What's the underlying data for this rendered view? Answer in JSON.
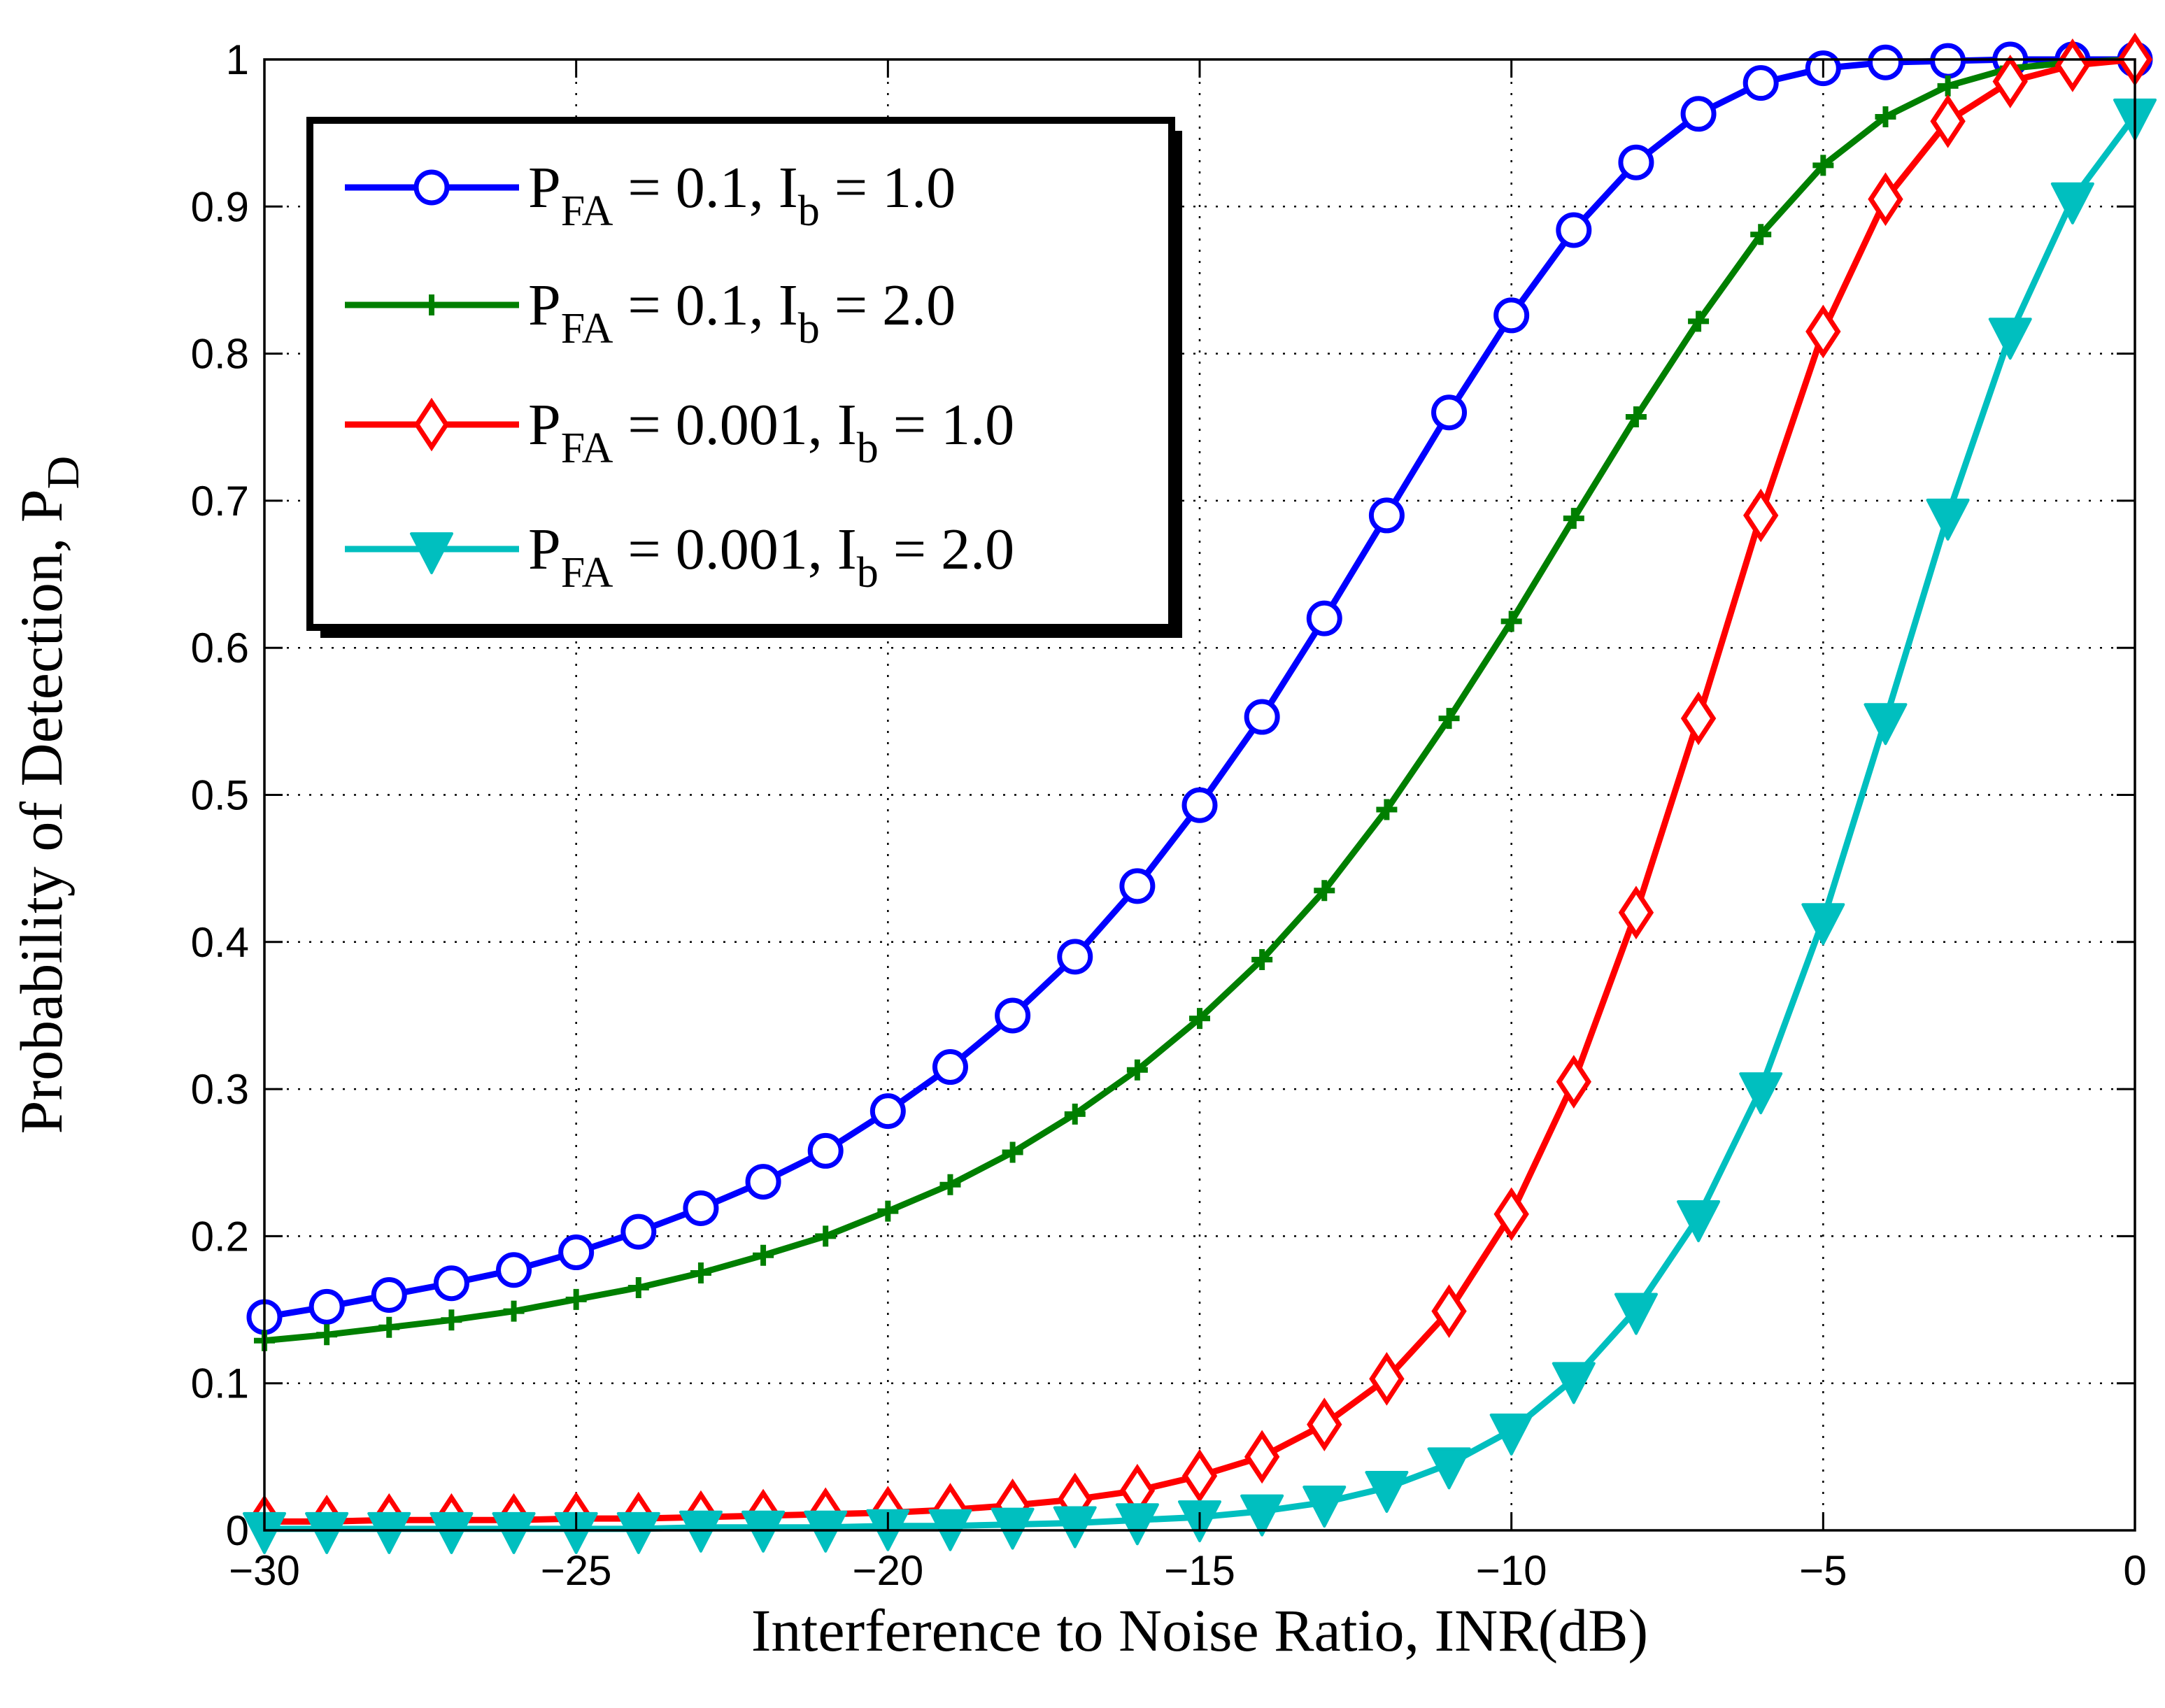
{
  "chart_data": {
    "type": "line",
    "title": "",
    "xlabel": "Interference to Noise Ratio, INR(dB)",
    "ylabel": {
      "main": "Probability of Detection, P",
      "sub": "D"
    },
    "xlim": [
      -30,
      0
    ],
    "ylim": [
      0,
      1
    ],
    "grid": true,
    "xticks": [
      -30,
      -25,
      -20,
      -15,
      -10,
      -5,
      0
    ],
    "xtick_labels": [
      "−30",
      "−25",
      "−20",
      "−15",
      "−10",
      "−5",
      "0"
    ],
    "yticks": [
      0,
      0.1,
      0.2,
      0.3,
      0.4,
      0.5,
      0.6,
      0.7,
      0.8,
      0.9,
      1
    ],
    "ytick_labels": [
      "0",
      "0.1",
      "0.2",
      "0.3",
      "0.4",
      "0.5",
      "0.6",
      "0.7",
      "0.8",
      "0.9",
      "1"
    ],
    "legend_position": "top-left",
    "x": [
      -30,
      -29,
      -28,
      -27,
      -26,
      -25,
      -24,
      -23,
      -22,
      -21,
      -20,
      -19,
      -18,
      -17,
      -16,
      -15,
      -14,
      -13,
      -12,
      -11,
      -10,
      -9,
      -8,
      -7,
      -6,
      -5,
      -4,
      -3,
      -2,
      -1,
      0
    ],
    "series": [
      {
        "name": "P_FA = 0.1, I_b = 1.0",
        "legend": {
          "p": "P",
          "pfa_sub": "FA",
          "pfa_val": " = 0.1, I",
          "ib_sub": "b",
          "ib_val": " = 1.0"
        },
        "color": "#0000ff",
        "marker": "circle",
        "values": [
          0.145,
          0.152,
          0.16,
          0.168,
          0.177,
          0.189,
          0.203,
          0.219,
          0.237,
          0.258,
          0.285,
          0.315,
          0.35,
          0.39,
          0.438,
          0.493,
          0.553,
          0.62,
          0.69,
          0.76,
          0.826,
          0.884,
          0.93,
          0.963,
          0.984,
          0.994,
          0.998,
          0.999,
          1.0,
          1.0,
          1.0
        ]
      },
      {
        "name": "P_FA = 0.1, I_b = 2.0",
        "legend": {
          "p": "P",
          "pfa_sub": "FA",
          "pfa_val": " = 0.1, I",
          "ib_sub": "b",
          "ib_val": " = 2.0"
        },
        "color": "#007f00",
        "marker": "plus",
        "values": [
          0.129,
          0.133,
          0.138,
          0.143,
          0.149,
          0.157,
          0.165,
          0.175,
          0.187,
          0.2,
          0.217,
          0.235,
          0.257,
          0.283,
          0.313,
          0.348,
          0.388,
          0.435,
          0.49,
          0.552,
          0.618,
          0.688,
          0.757,
          0.822,
          0.881,
          0.928,
          0.961,
          0.982,
          0.994,
          0.998,
          1.0
        ]
      },
      {
        "name": "P_FA = 0.001, I_b = 1.0",
        "legend": {
          "p": "P",
          "pfa_sub": "FA",
          "pfa_val": " = 0.001, I",
          "ib_sub": "b",
          "ib_val": " = 1.0"
        },
        "color": "#ff0000",
        "marker": "diamond",
        "values": [
          0.006,
          0.006,
          0.007,
          0.007,
          0.007,
          0.008,
          0.008,
          0.009,
          0.01,
          0.011,
          0.012,
          0.014,
          0.017,
          0.021,
          0.027,
          0.037,
          0.05,
          0.072,
          0.103,
          0.149,
          0.215,
          0.305,
          0.42,
          0.552,
          0.69,
          0.815,
          0.905,
          0.958,
          0.985,
          0.996,
          1.0
        ]
      },
      {
        "name": "P_FA = 0.001, I_b = 2.0",
        "legend": {
          "p": "P",
          "pfa_sub": "FA",
          "pfa_val": " = 0.001, I",
          "ib_sub": "b",
          "ib_val": " = 2.0"
        },
        "color": "#00bfbf",
        "marker": "triangle-down",
        "values": [
          0.001,
          0.001,
          0.001,
          0.001,
          0.001,
          0.001,
          0.001,
          0.002,
          0.002,
          0.002,
          0.003,
          0.003,
          0.004,
          0.005,
          0.007,
          0.009,
          0.013,
          0.019,
          0.029,
          0.045,
          0.068,
          0.103,
          0.15,
          0.213,
          0.3,
          0.415,
          0.551,
          0.69,
          0.813,
          0.905,
          0.962
        ]
      }
    ]
  }
}
